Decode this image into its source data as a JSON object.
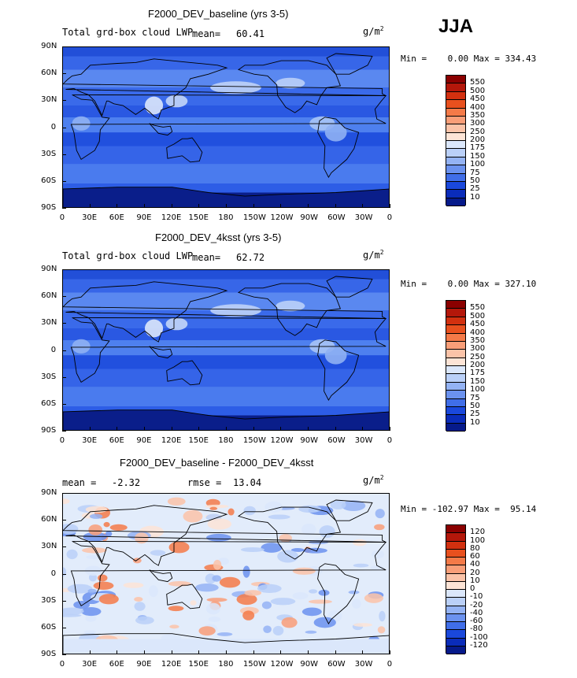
{
  "season": "JJA",
  "units_base": "g/m",
  "units_exp": "2",
  "colors": {
    "ocean_low": "#0f3fd8",
    "land_mid": "#3f72ee",
    "polar": "#0a1e8a",
    "highlight": "#d8e8fb"
  },
  "lon_ticks": [
    "0",
    "30E",
    "60E",
    "90E",
    "120E",
    "150E",
    "180",
    "150W",
    "120W",
    "90W",
    "60W",
    "30W",
    "0"
  ],
  "lat_ticks": [
    "90N",
    "60N",
    "30N",
    "0",
    "30S",
    "60S",
    "90S"
  ],
  "chart_data": [
    {
      "type": "heatmap",
      "title": "F2000_DEV_baseline (yrs 3-5)",
      "field_label": "Total grd-box cloud LWP",
      "mean_label": "mean=",
      "mean": "60.41",
      "min_label": "Min =",
      "min": "0.00",
      "max_label": "Max =",
      "max": "334.43",
      "xlim": [
        0,
        360
      ],
      "ylim": [
        -90,
        90
      ],
      "colorbar_levels": [
        "550",
        "500",
        "450",
        "400",
        "350",
        "300",
        "250",
        "200",
        "175",
        "150",
        "100",
        "75",
        "50",
        "25",
        "10"
      ],
      "colorbar_colors": [
        "#8b0000",
        "#b4170a",
        "#d2300f",
        "#e8501e",
        "#f47a48",
        "#f99e78",
        "#fbc3a8",
        "#fde4d6",
        "#dbe7fb",
        "#bad0f8",
        "#94b3f4",
        "#6b92ef",
        "#406ee8",
        "#1a48dc",
        "#0a2cba",
        "#061a8a"
      ]
    },
    {
      "type": "heatmap",
      "title": "F2000_DEV_4ksst (yrs 3-5)",
      "field_label": "Total grd-box cloud LWP",
      "mean_label": "mean=",
      "mean": "62.72",
      "min_label": "Min =",
      "min": "0.00",
      "max_label": "Max =",
      "max": "327.10",
      "xlim": [
        0,
        360
      ],
      "ylim": [
        -90,
        90
      ],
      "colorbar_levels": [
        "550",
        "500",
        "450",
        "400",
        "350",
        "300",
        "250",
        "200",
        "175",
        "150",
        "100",
        "75",
        "50",
        "25",
        "10"
      ],
      "colorbar_colors": [
        "#8b0000",
        "#b4170a",
        "#d2300f",
        "#e8501e",
        "#f47a48",
        "#f99e78",
        "#fbc3a8",
        "#fde4d6",
        "#dbe7fb",
        "#bad0f8",
        "#94b3f4",
        "#6b92ef",
        "#406ee8",
        "#1a48dc",
        "#0a2cba",
        "#061a8a"
      ]
    },
    {
      "type": "heatmap",
      "title": "F2000_DEV_baseline - F2000_DEV_4ksst",
      "mean_label": "mean =",
      "mean": "-2.32",
      "rmse_label": "rmse =",
      "rmse": "13.04",
      "min_label": "Min =",
      "min": "-102.97",
      "max_label": "Max =",
      "max": "95.14",
      "xlim": [
        0,
        360
      ],
      "ylim": [
        -90,
        90
      ],
      "colorbar_levels": [
        "120",
        "100",
        "80",
        "60",
        "40",
        "20",
        "10",
        "0",
        "-10",
        "-20",
        "-40",
        "-60",
        "-80",
        "-100",
        "-120"
      ],
      "colorbar_colors": [
        "#8b0000",
        "#b4170a",
        "#d2300f",
        "#e8501e",
        "#f47a48",
        "#f99e78",
        "#fbc3a8",
        "#fde4d6",
        "#dbe7fb",
        "#bad0f8",
        "#94b3f4",
        "#6b92ef",
        "#406ee8",
        "#1a48dc",
        "#0a2cba",
        "#061a8a"
      ]
    }
  ]
}
